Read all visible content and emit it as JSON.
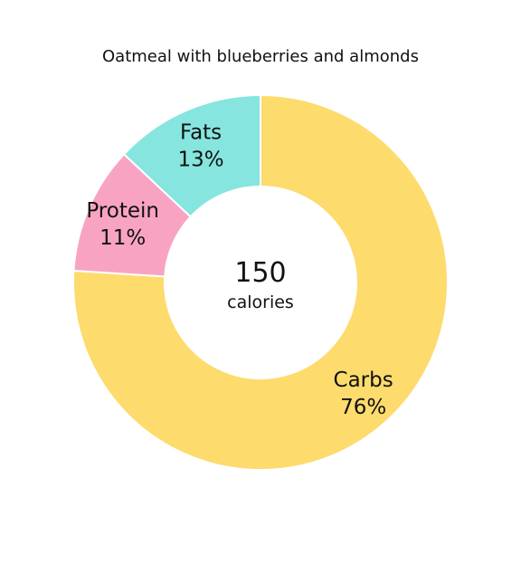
{
  "chart_data": {
    "type": "pie",
    "title": "Oatmeal with blueberries and almonds",
    "center": {
      "value": "150",
      "unit": "calories"
    },
    "slices": [
      {
        "label": "Carbs",
        "value": 76,
        "value_label": "76%",
        "color": "#FDDB6D"
      },
      {
        "label": "Protein",
        "value": 11,
        "value_label": "11%",
        "color": "#F9A3C3"
      },
      {
        "label": "Fats",
        "value": 13,
        "value_label": "13%",
        "color": "#86E5DF"
      }
    ],
    "unit": "%",
    "donut": true,
    "legend": "none"
  }
}
